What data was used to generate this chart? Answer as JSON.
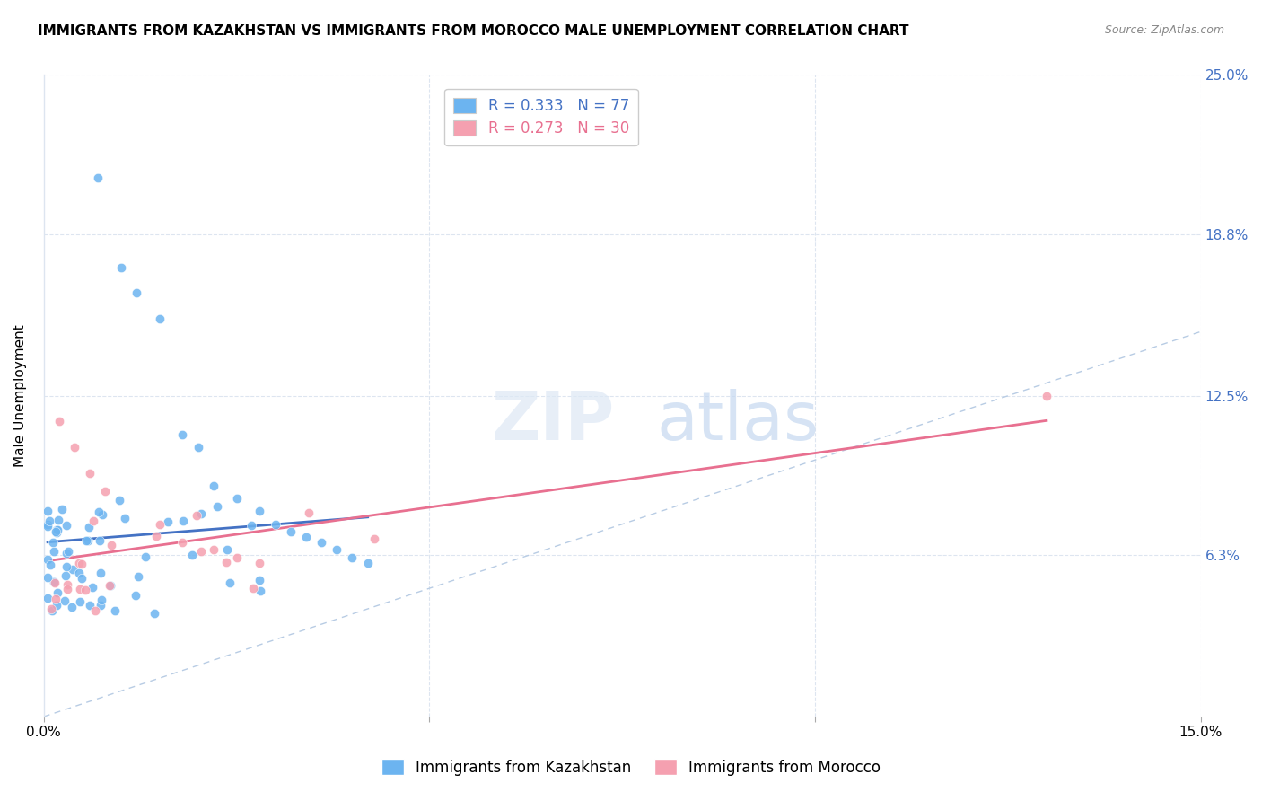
{
  "title": "IMMIGRANTS FROM KAZAKHSTAN VS IMMIGRANTS FROM MOROCCO MALE UNEMPLOYMENT CORRELATION CHART",
  "source": "Source: ZipAtlas.com",
  "ylabel": "Male Unemployment",
  "color_kaz": "#6cb4f0",
  "color_mor": "#f5a0b0",
  "color_kaz_line": "#4472c4",
  "color_mor_line": "#e87090",
  "color_diag": "#b8cce4",
  "legend_r1": "0.333",
  "legend_n1": "77",
  "legend_r2": "0.273",
  "legend_n2": "30",
  "x_lim": [
    0.0,
    0.15
  ],
  "y_lim": [
    0.0,
    0.25
  ],
  "y_ticks": [
    0.0,
    0.063,
    0.125,
    0.188,
    0.25
  ],
  "y_tick_labels": [
    "",
    "6.3%",
    "12.5%",
    "18.8%",
    "25.0%"
  ],
  "x_ticks": [
    0.0,
    0.05,
    0.1,
    0.15
  ],
  "x_tick_labels": [
    "0.0%",
    "",
    "",
    "15.0%"
  ],
  "grid_color": "#dde5f0",
  "label_kaz": "Immigrants from Kazakhstan",
  "label_mor": "Immigrants from Morocco",
  "right_label_color": "#4472c4",
  "watermark_zip": "ZIP",
  "watermark_atlas": "atlas"
}
